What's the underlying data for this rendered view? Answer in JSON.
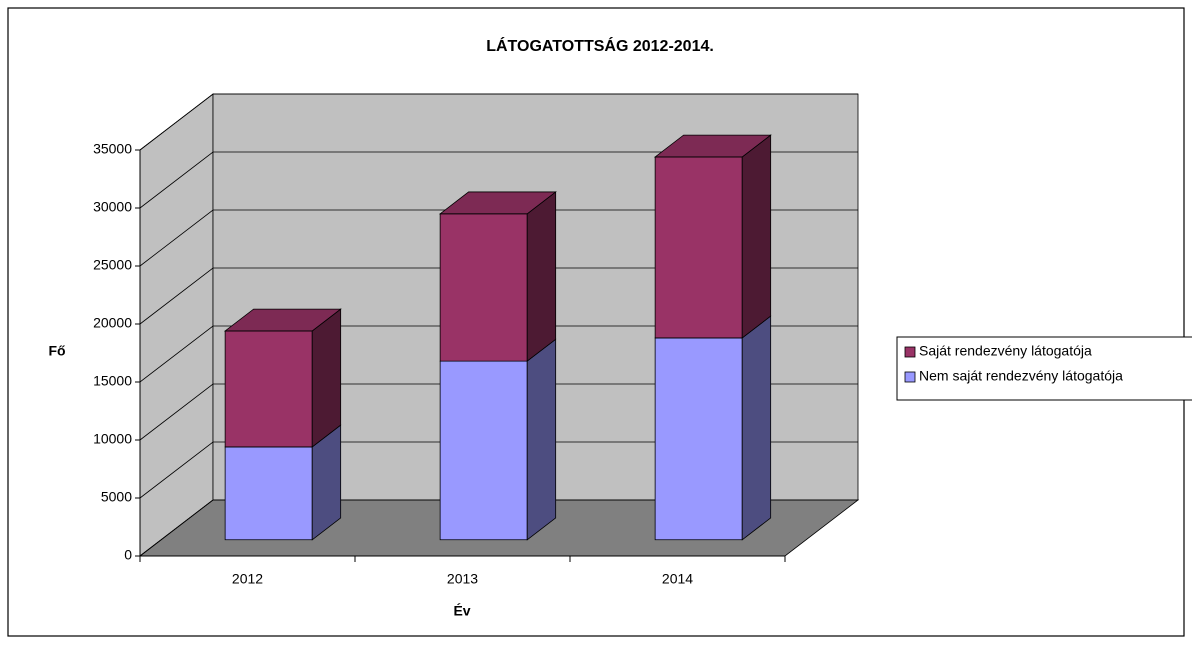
{
  "chart_data": {
    "type": "bar3d_stacked",
    "title": "LÁTOGATOTTSÁG 2012-2014.",
    "x_label": "Év",
    "y_label": "Fő",
    "categories": [
      "2012",
      "2013",
      "2014"
    ],
    "series": [
      {
        "name": "Nem saját rendezvény látogatója",
        "color": "#9999ff",
        "values": [
          8000,
          15400,
          17400
        ]
      },
      {
        "name": "Saját rendezvény látogatója",
        "color": "#993366",
        "values": [
          10000,
          12700,
          15600
        ]
      }
    ],
    "ylim": [
      0,
      35000
    ],
    "yticks": [
      0,
      5000,
      10000,
      15000,
      20000,
      25000,
      30000,
      35000
    ],
    "grid": true,
    "legend": "right"
  }
}
